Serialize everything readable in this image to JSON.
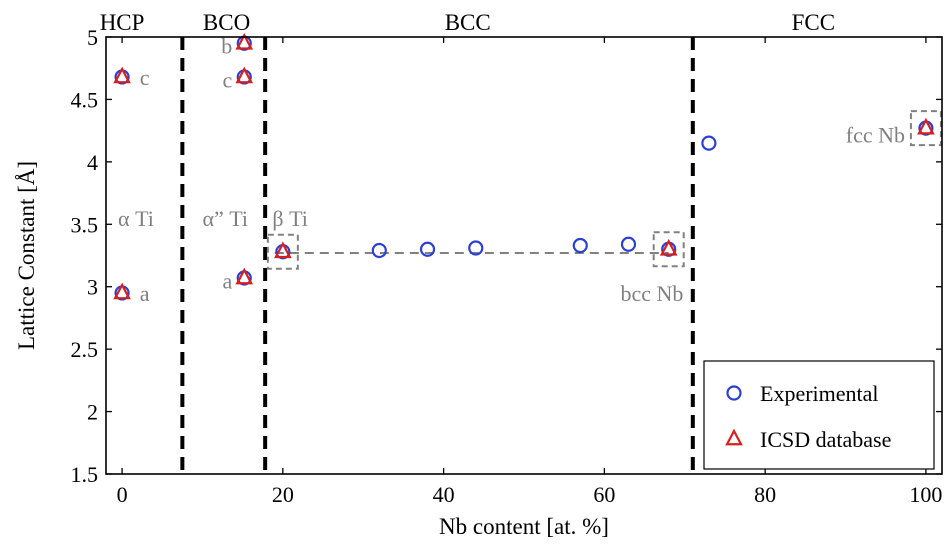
{
  "colors": {
    "experimental": "#2b3fd6",
    "icsd": "#d62020",
    "annotation": "#808080",
    "dashed_box": "#808080",
    "phase_boundary": "#000000"
  },
  "chart_data": {
    "type": "scatter",
    "xlabel": "Nb content [at. %]",
    "ylabel": "Lattice Constant [Å]",
    "xlim": [
      -2,
      102
    ],
    "ylim": [
      1.5,
      5
    ],
    "xticks": [
      0,
      20,
      40,
      60,
      80,
      100
    ],
    "yticks": [
      1.5,
      2,
      2.5,
      3,
      3.5,
      4,
      4.5,
      5
    ],
    "grid": false,
    "legend_position": "bottom-right",
    "phase_boundaries": [
      7.5,
      17.8,
      71
    ],
    "phases": [
      {
        "label": "HCP",
        "x": 0
      },
      {
        "label": "BCO",
        "x": 13
      },
      {
        "label": "BCC",
        "x": 43
      },
      {
        "label": "FCC",
        "x": 86
      }
    ],
    "series": [
      {
        "name": "Experimental",
        "marker": "circle",
        "points": [
          {
            "x": 0,
            "y": 4.68
          },
          {
            "x": 0,
            "y": 2.95
          },
          {
            "x": 15.2,
            "y": 4.95
          },
          {
            "x": 15.2,
            "y": 4.68
          },
          {
            "x": 15.2,
            "y": 3.07
          },
          {
            "x": 20,
            "y": 3.28
          },
          {
            "x": 32,
            "y": 3.29
          },
          {
            "x": 38,
            "y": 3.3
          },
          {
            "x": 44,
            "y": 3.31
          },
          {
            "x": 57,
            "y": 3.33
          },
          {
            "x": 63,
            "y": 3.34
          },
          {
            "x": 68,
            "y": 3.3
          },
          {
            "x": 73,
            "y": 4.15
          },
          {
            "x": 100,
            "y": 4.27
          }
        ]
      },
      {
        "name": "ICSD database",
        "marker": "triangle",
        "points": [
          {
            "x": 0,
            "y": 4.68
          },
          {
            "x": 0,
            "y": 2.95
          },
          {
            "x": 15.2,
            "y": 4.95
          },
          {
            "x": 15.2,
            "y": 4.68
          },
          {
            "x": 15.2,
            "y": 3.07
          },
          {
            "x": 20,
            "y": 3.28
          },
          {
            "x": 68,
            "y": 3.3
          },
          {
            "x": 100,
            "y": 4.27
          }
        ]
      }
    ],
    "trend_line": {
      "x": [
        19,
        68
      ],
      "y": [
        3.27,
        3.27
      ]
    },
    "boxes": [
      {
        "x": 20,
        "y": 3.28
      },
      {
        "x": 68,
        "y": 3.3
      },
      {
        "x": 100,
        "y": 4.27
      }
    ],
    "annotations": [
      {
        "text": "c",
        "x": 2.2,
        "y": 4.68,
        "anchor": "start"
      },
      {
        "text": "a",
        "x": 2.2,
        "y": 2.95,
        "anchor": "start"
      },
      {
        "text": "α Ti",
        "x": -0.5,
        "y": 3.55,
        "anchor": "start"
      },
      {
        "text": "b",
        "x": 13.7,
        "y": 4.93,
        "anchor": "end"
      },
      {
        "text": "c",
        "x": 13.7,
        "y": 4.66,
        "anchor": "end"
      },
      {
        "text": "a",
        "x": 13.7,
        "y": 3.05,
        "anchor": "end"
      },
      {
        "text": "α” Ti",
        "x": 10,
        "y": 3.55,
        "anchor": "start"
      },
      {
        "text": "β Ti",
        "x": 18.7,
        "y": 3.55,
        "anchor": "start"
      },
      {
        "text": "bcc Nb",
        "x": 62,
        "y": 2.95,
        "anchor": "start"
      },
      {
        "text": "fcc Nb",
        "x": 97.4,
        "y": 4.22,
        "anchor": "end"
      }
    ]
  }
}
